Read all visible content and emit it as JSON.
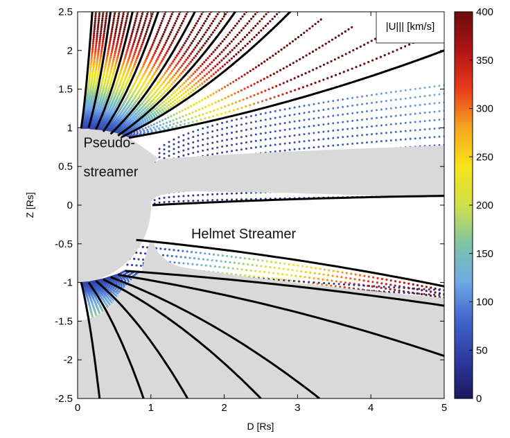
{
  "chart_data": {
    "type": "scatter",
    "xlabel": "D [Rs]",
    "ylabel": "Z [Rs]",
    "xlim": [
      0,
      5
    ],
    "ylim": [
      -2.5,
      2.5
    ],
    "x_ticks": [
      "0",
      "1",
      "2",
      "3",
      "4",
      "5"
    ],
    "y_ticks": [
      "2.5",
      "2",
      "1.5",
      "1",
      "0.5",
      "0",
      "-0.5",
      "-1",
      "-1.5",
      "-2",
      "-2.5"
    ],
    "grid": false,
    "colorbar": {
      "label": "|U||| [km/s]",
      "range": [
        0,
        400
      ],
      "ticks": [
        "400",
        "350",
        "300",
        "250",
        "200",
        "150",
        "100",
        "50",
        "0"
      ],
      "colormap": [
        "#19195e",
        "#2d3aa0",
        "#3f63c8",
        "#6ea8e6",
        "#7fc4a8",
        "#cfe04a",
        "#f6e41a",
        "#f7a51e",
        "#e83b1c",
        "#b01414",
        "#6b0d0d"
      ]
    },
    "annotations": [
      {
        "text": "Pseudo-",
        "x": 0.08,
        "y": 0.75
      },
      {
        "text": "streamer",
        "x": 0.08,
        "y": 0.37
      },
      {
        "text": "Helmet Streamer",
        "x": 1.55,
        "y": -0.43
      }
    ],
    "regions": {
      "sun_disk_radius": 1.0,
      "helmet_streamer_fill": "#d9d9d9",
      "pseudostreamer_fill": "#d9d9d9"
    },
    "field_lines": {
      "northern_open": [
        {
          "start": [
            0.05,
            1.0
          ],
          "end": [
            0.2,
            2.5
          ]
        },
        {
          "start": [
            0.15,
            1.0
          ],
          "end": [
            0.45,
            2.5
          ]
        },
        {
          "start": [
            0.25,
            0.98
          ],
          "end": [
            0.75,
            2.5
          ]
        },
        {
          "start": [
            0.35,
            0.95
          ],
          "end": [
            1.1,
            2.5
          ]
        },
        {
          "start": [
            0.45,
            0.92
          ],
          "end": [
            1.6,
            2.5
          ]
        },
        {
          "start": [
            0.55,
            0.9
          ],
          "end": [
            2.15,
            2.5
          ]
        },
        {
          "start": [
            0.6,
            0.88
          ],
          "end": [
            2.9,
            2.5
          ]
        },
        {
          "start": [
            0.7,
            0.87
          ],
          "end": [
            5.0,
            2.0
          ]
        }
      ],
      "equatorial_open": [
        {
          "start": [
            1.02,
            0.0
          ],
          "end": [
            5.0,
            0.12
          ]
        }
      ],
      "southern_open": [
        {
          "start": [
            0.8,
            -0.45
          ],
          "end": [
            5.0,
            -1.05
          ]
        },
        {
          "start": [
            0.65,
            -0.85
          ],
          "end": [
            5.0,
            -1.3
          ]
        },
        {
          "start": [
            0.55,
            -0.9
          ],
          "end": [
            5.0,
            -1.95
          ]
        },
        {
          "start": [
            0.45,
            -0.93
          ],
          "end": [
            3.3,
            -2.5
          ]
        },
        {
          "start": [
            0.35,
            -0.96
          ],
          "end": [
            2.5,
            -2.5
          ]
        },
        {
          "start": [
            0.25,
            -0.98
          ],
          "end": [
            1.5,
            -2.5
          ]
        },
        {
          "start": [
            0.15,
            -1.0
          ],
          "end": [
            0.9,
            -2.5
          ]
        },
        {
          "start": [
            0.05,
            -1.0
          ],
          "end": [
            0.3,
            -2.5
          ]
        }
      ]
    }
  }
}
